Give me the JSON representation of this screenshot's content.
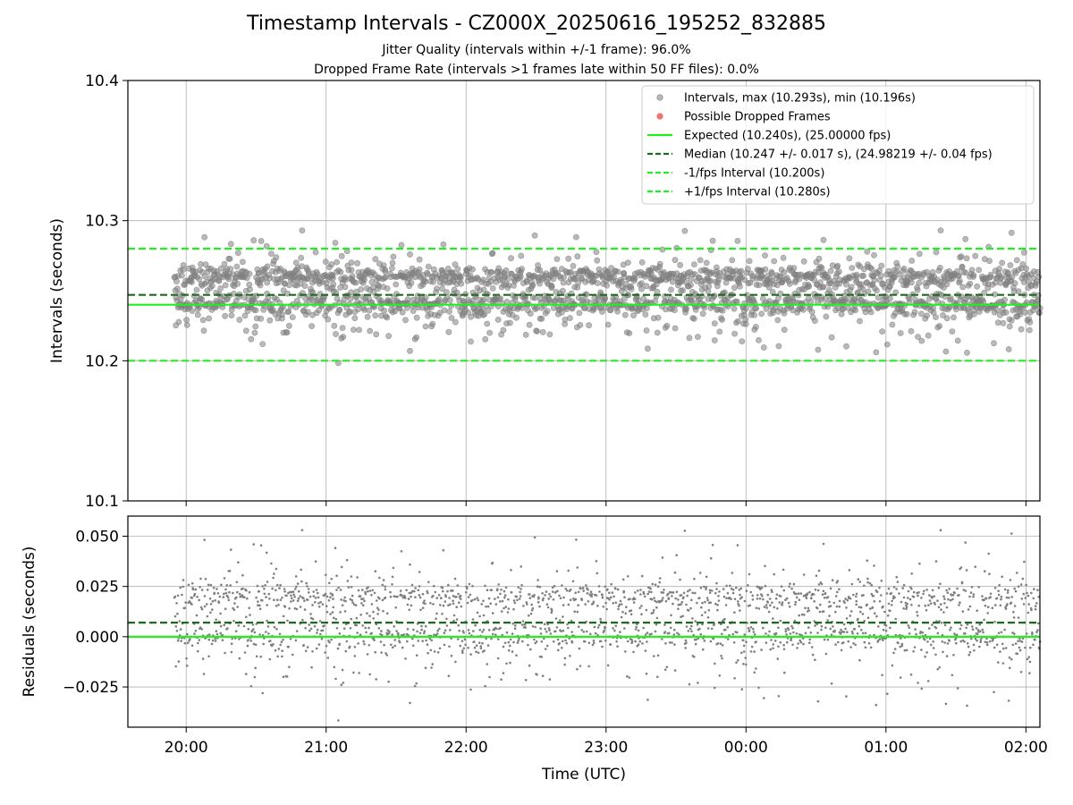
{
  "chart_data": [
    {
      "type": "scatter",
      "title": "Timestamp Intervals - CZ000X_20250616_195252_832885",
      "subtitle_lines": [
        "Jitter Quality (intervals within +/-1 frame): 96.0%",
        "Dropped Frame Rate (intervals >1 frames late within 50 FF files): 0.0%"
      ],
      "xlabel": "",
      "ylabel": "Intervals (seconds)",
      "x_time_range": [
        "19:35",
        "02:06"
      ],
      "ylim": [
        10.1,
        10.4
      ],
      "y_ticks": [
        "10.1",
        "10.2",
        "10.3",
        "10.4"
      ],
      "grid": true,
      "legend_position": "upper-right",
      "series": [
        {
          "name": "Intervals, max (10.293s), min (10.196s)",
          "kind": "points",
          "color": "#808080",
          "max": 10.293,
          "min": 10.196,
          "median": 10.247,
          "spread": 0.017,
          "x_start": "19:55",
          "x_end": "02:06"
        },
        {
          "name": "Possible Dropped Frames",
          "kind": "points",
          "color": "#f05a5a",
          "count": 0
        },
        {
          "name": "Expected (10.240s), (25.00000 fps)",
          "kind": "hline",
          "style": "solid",
          "color": "#22ee22",
          "y": 10.24
        },
        {
          "name": "Median (10.247 +/- 0.017 s), (24.98219 +/- 0.04 fps)",
          "kind": "hline",
          "style": "dashed",
          "color": "#1a6b1a",
          "y": 10.247
        },
        {
          "name": "-1/fps Interval (10.200s)",
          "kind": "hline",
          "style": "dashed",
          "color": "#22ee22",
          "y": 10.2
        },
        {
          "name": "+1/fps Interval (10.280s)",
          "kind": "hline",
          "style": "dashed",
          "color": "#22ee22",
          "y": 10.28
        }
      ]
    },
    {
      "type": "scatter",
      "title": "",
      "xlabel": "Time (UTC)",
      "ylabel": "Residuals (seconds)",
      "x_ticks": [
        "20:00",
        "21:00",
        "22:00",
        "23:00",
        "00:00",
        "01:00",
        "02:00"
      ],
      "x_time_range": [
        "19:35",
        "02:06"
      ],
      "ylim": [
        -0.045,
        0.06
      ],
      "y_ticks": [
        "0.050",
        "0.025",
        "0.000",
        "−0.025"
      ],
      "grid": true,
      "series": [
        {
          "kind": "points",
          "color": "#7f7f7f",
          "max": 0.053,
          "min": -0.044
        },
        {
          "kind": "hline",
          "style": "dashed",
          "color": "#1a6b1a",
          "y": 0.007
        },
        {
          "kind": "hline",
          "style": "solid",
          "color": "#22ee22",
          "y": 0.0
        }
      ]
    }
  ]
}
